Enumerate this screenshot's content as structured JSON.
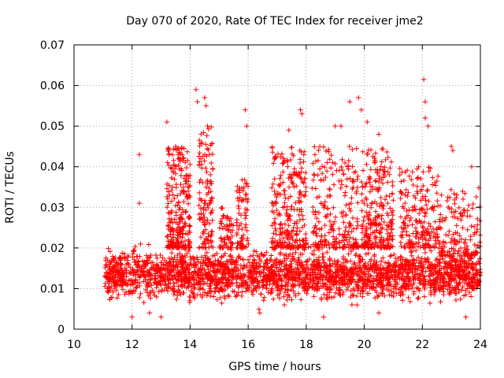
{
  "chart_data": {
    "type": "scatter",
    "title": "Day 070 of 2020, Rate Of TEC Index for receiver jme2",
    "xlabel": "GPS time / hours",
    "ylabel": "ROTI / TECUs",
    "xlim": [
      10,
      24
    ],
    "ylim": [
      0,
      0.07
    ],
    "x_ticks": [
      10,
      12,
      14,
      16,
      18,
      20,
      22,
      24
    ],
    "x_tick_labels": [
      "10",
      "12",
      "14",
      "16",
      "18",
      "20",
      "22",
      "24"
    ],
    "y_ticks": [
      0,
      0.01,
      0.02,
      0.03,
      0.04,
      0.05,
      0.06,
      0.07
    ],
    "y_tick_labels": [
      "0",
      "0.01",
      "0.02",
      "0.03",
      "0.04",
      "0.05",
      "0.06",
      "0.07"
    ],
    "grid": true,
    "marker": "+",
    "series": [
      {
        "name": "ROTI",
        "color": "#ff0000",
        "data_range_x": [
          11.05,
          24.0
        ],
        "typical_band": [
          0.005,
          0.022
        ],
        "notable_points": [
          [
            12.25,
            0.043
          ],
          [
            12.25,
            0.031
          ],
          [
            13.2,
            0.051
          ],
          [
            13.5,
            0.045
          ],
          [
            13.6,
            0.042
          ],
          [
            14.2,
            0.059
          ],
          [
            14.25,
            0.056
          ],
          [
            14.5,
            0.057
          ],
          [
            14.55,
            0.055
          ],
          [
            14.6,
            0.05
          ],
          [
            15.9,
            0.054
          ],
          [
            15.95,
            0.05
          ],
          [
            17.4,
            0.049
          ],
          [
            17.8,
            0.054
          ],
          [
            17.85,
            0.053
          ],
          [
            19.0,
            0.05
          ],
          [
            19.2,
            0.05
          ],
          [
            19.5,
            0.056
          ],
          [
            19.8,
            0.057
          ],
          [
            19.9,
            0.054
          ],
          [
            20.1,
            0.051
          ],
          [
            20.5,
            0.048
          ],
          [
            22.05,
            0.0615
          ],
          [
            22.1,
            0.056
          ],
          [
            22.1,
            0.052
          ],
          [
            22.2,
            0.05
          ],
          [
            23.0,
            0.045
          ],
          [
            23.05,
            0.044
          ],
          [
            23.7,
            0.04
          ],
          [
            12.0,
            0.003
          ],
          [
            12.6,
            0.004
          ],
          [
            13.0,
            0.003
          ],
          [
            16.4,
            0.004
          ],
          [
            18.6,
            0.003
          ],
          [
            20.5,
            0.004
          ],
          [
            23.5,
            0.003
          ]
        ]
      }
    ]
  }
}
